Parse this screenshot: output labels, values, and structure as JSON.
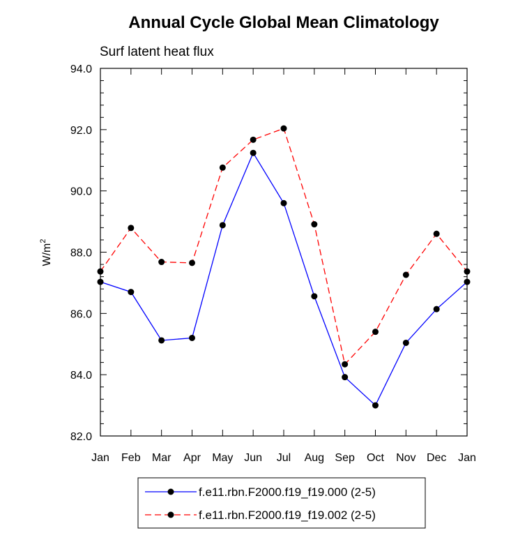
{
  "chart_data": {
    "type": "line",
    "title": "Annual Cycle Global Mean Climatology",
    "subtitle": "Surf latent heat flux",
    "ylabel_base": "W/m",
    "ylabel_sup": "2",
    "xlabel": "",
    "categories": [
      "Jan",
      "Feb",
      "Mar",
      "Apr",
      "May",
      "Jun",
      "Jul",
      "Aug",
      "Sep",
      "Oct",
      "Nov",
      "Dec",
      "Jan"
    ],
    "ylim": [
      82.0,
      94.0
    ],
    "yticks": [
      82.0,
      84.0,
      86.0,
      88.0,
      90.0,
      92.0,
      94.0
    ],
    "ytick_labels": [
      "82.0",
      "84.0",
      "86.0",
      "88.0",
      "90.0",
      "92.0",
      "94.0"
    ],
    "series": [
      {
        "name": "f.e11.rbn.F2000.f19_f19.000 (2-5)",
        "color": "#0000ff",
        "dash": "solid",
        "marker_color": "#000000",
        "values": [
          87.03,
          86.7,
          85.12,
          85.2,
          88.88,
          91.24,
          89.6,
          86.56,
          83.92,
          83.0,
          85.04,
          86.14,
          87.03
        ]
      },
      {
        "name": "f.e11.rbn.F2000.f19_f19.002 (2-5)",
        "color": "#ff0000",
        "dash": "dashed",
        "marker_color": "#000000",
        "values": [
          87.37,
          88.79,
          87.68,
          87.65,
          90.76,
          91.67,
          92.04,
          88.91,
          84.34,
          85.4,
          87.26,
          88.6,
          87.37
        ]
      }
    ]
  }
}
